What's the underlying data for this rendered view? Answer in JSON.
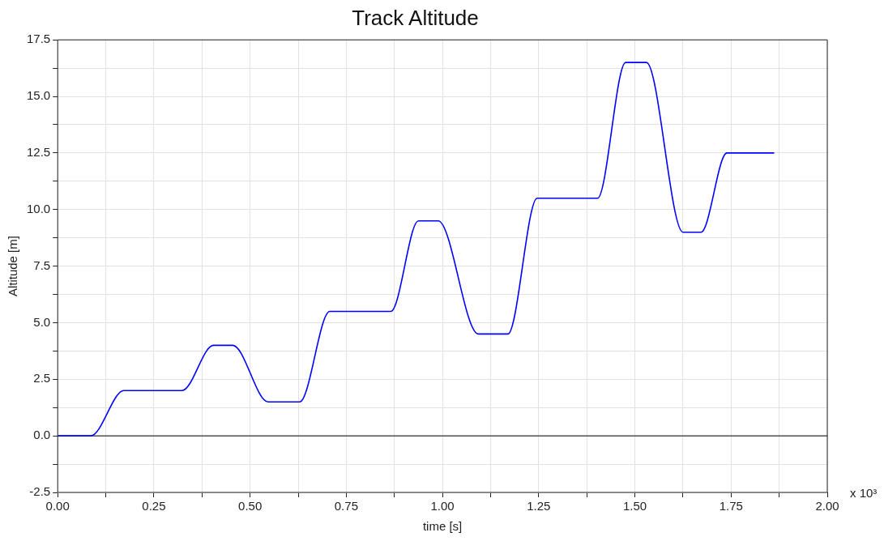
{
  "chart_data": {
    "type": "line",
    "title": "Track Altitude",
    "xlabel": "time [s]",
    "ylabel": "Altitude [m]",
    "annotations": [
      "x 10³"
    ],
    "x": [
      0,
      0.086,
      0.172,
      0.323,
      0.405,
      0.455,
      0.547,
      0.629,
      0.707,
      0.866,
      0.9375,
      0.989,
      1.093,
      1.17,
      1.246,
      1.403,
      1.476,
      1.53,
      1.625,
      1.672,
      1.739,
      1.862
    ],
    "series": [
      {
        "color": "#0000ff",
        "values": [
          0,
          0,
          2,
          2,
          4,
          4,
          1.5,
          1.5,
          5.5,
          5.5,
          9.5,
          9.5,
          4.5,
          4.5,
          10.5,
          10.5,
          16.5,
          16.5,
          9,
          9,
          12.5,
          12.5
        ]
      }
    ],
    "xlim": [
      0,
      2
    ],
    "ylim": [
      -2.5,
      17.5
    ],
    "xticks": [
      {
        "value": 0,
        "label": "0.00"
      },
      {
        "value": 0.125,
        "label": null
      },
      {
        "value": 0.25,
        "label": "0.25"
      },
      {
        "value": 0.375,
        "label": null
      },
      {
        "value": 0.5,
        "label": "0.50"
      },
      {
        "value": 0.625,
        "label": null
      },
      {
        "value": 0.75,
        "label": "0.75"
      },
      {
        "value": 0.875,
        "label": null
      },
      {
        "value": 1,
        "label": "1.00"
      },
      {
        "value": 1.125,
        "label": null
      },
      {
        "value": 1.25,
        "label": "1.25"
      },
      {
        "value": 1.375,
        "label": null
      },
      {
        "value": 1.5,
        "label": "1.50"
      },
      {
        "value": 1.625,
        "label": null
      },
      {
        "value": 1.75,
        "label": "1.75"
      },
      {
        "value": 1.875,
        "label": null
      },
      {
        "value": 2,
        "label": "2.00"
      }
    ],
    "yticks": [
      {
        "value": -2.5,
        "label": "-2.5"
      },
      {
        "value": -1.25,
        "label": null
      },
      {
        "value": 0,
        "label": "0.0"
      },
      {
        "value": 1.25,
        "label": null
      },
      {
        "value": 2.5,
        "label": "2.5"
      },
      {
        "value": 3.75,
        "label": null
      },
      {
        "value": 5,
        "label": "5.0"
      },
      {
        "value": 6.25,
        "label": null
      },
      {
        "value": 7.5,
        "label": "7.5"
      },
      {
        "value": 8.75,
        "label": null
      },
      {
        "value": 10,
        "label": "10.0"
      },
      {
        "value": 11.25,
        "label": null
      },
      {
        "value": 12.5,
        "label": "12.5"
      },
      {
        "value": 13.75,
        "label": null
      },
      {
        "value": 15,
        "label": "15.0"
      },
      {
        "value": 16.25,
        "label": null
      },
      {
        "value": 17.5,
        "label": "17.5"
      }
    ],
    "ref_lines": [
      {
        "axis": "y",
        "value": 0,
        "color": "#000000"
      }
    ],
    "grid": true,
    "marker": "none",
    "line_style": "solid"
  }
}
